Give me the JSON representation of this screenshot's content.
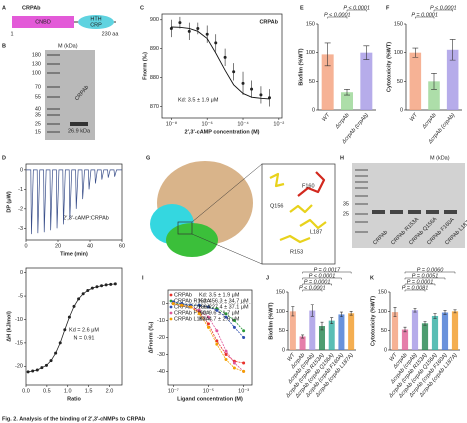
{
  "figure": {
    "panel_labels": [
      "A",
      "B",
      "C",
      "D",
      "E",
      "F",
      "G",
      "H",
      "I",
      "J",
      "K"
    ],
    "caption": "Fig. 2. Analysis of the binding of 2′,3′-cNMPs to CRPAb"
  },
  "domain_map": {
    "protein": "CRPAb",
    "domain1": "CNBD",
    "domain2_top": "HTH",
    "domain2_bottom": "CRP",
    "start": "1",
    "end": "230 aa"
  },
  "gel_b": {
    "unit": "M (kDa)",
    "markers": [
      "180",
      "130",
      "100",
      "70",
      "55",
      "40",
      "35",
      "25",
      "15"
    ],
    "lane": "CRPAb",
    "band": "26.9 kDa"
  },
  "structure_g": {
    "residues": [
      "F160",
      "Q156",
      "L187",
      "R153"
    ]
  },
  "gel_h": {
    "unit": "M (kDa)",
    "markers": [
      "35",
      "25"
    ],
    "lanes": [
      "CRPAb",
      "CRPAb R153A",
      "CRPAb Q156A",
      "CRPAb F160A",
      "CRPAb L187A"
    ]
  },
  "chart_data": [
    {
      "type": "scatter",
      "title": "CRPAb",
      "xlabel": "2′,3′-cAMP concentration (M)",
      "ylabel": "Fnorm (‰)",
      "log_x": true,
      "x": [
        1e-08,
        3e-08,
        1e-07,
        3e-07,
        1e-06,
        3e-06,
        1e-05,
        3e-05,
        0.0001,
        0.0003,
        0.001,
        0.003
      ],
      "series": [
        {
          "color": "#222222",
          "values": [
            897,
            899,
            896,
            897,
            895,
            892,
            887,
            882,
            878,
            876,
            874,
            873
          ],
          "errors": [
            3,
            2,
            3,
            2,
            3,
            3,
            3,
            3,
            4,
            3,
            3,
            3
          ]
        }
      ],
      "fit": {
        "x": [
          1e-08,
          3e-08,
          1e-07,
          3e-07,
          1e-06,
          3e-06,
          1e-05,
          3e-05,
          0.0001,
          0.0003,
          0.001,
          0.003
        ],
        "values": [
          897.5,
          897.4,
          897,
          896,
          893.5,
          888.5,
          882.5,
          877.5,
          874.5,
          873.2,
          872.8,
          872.6
        ]
      },
      "annotations": [
        "Kd: 3.5 ± 1.9 μM"
      ],
      "xlim": [
        3e-09,
        0.015
      ],
      "ylim": [
        866,
        902
      ],
      "xticks": [
        {
          "value": 1e-08,
          "label": "10⁻⁸"
        },
        {
          "value": 1e-06,
          "label": "10⁻⁶"
        },
        {
          "value": 0.0001,
          "label": "10⁻⁴"
        },
        {
          "value": 0.01,
          "label": "10⁻²"
        }
      ],
      "yticks": [
        870,
        880,
        890,
        900
      ]
    },
    {
      "type": "line",
      "xlabel": "Time (min)",
      "ylabel": "DP (μW)",
      "annotations": [
        "2′,3′-cAMP:CRPAb"
      ],
      "x": [
        0,
        3,
        3.4,
        4.6,
        7,
        7.4,
        8.6,
        11,
        11.4,
        12.6,
        15,
        15.4,
        16.6,
        19,
        19.4,
        20.6,
        23,
        23.4,
        24.6,
        27,
        27.4,
        28.6,
        31,
        31.4,
        32.6,
        35,
        35.4,
        36.6,
        39,
        39.4,
        40.6,
        43,
        43.4,
        44.6,
        47,
        47.4,
        48.6,
        51,
        51.4,
        52.6,
        55,
        55.4,
        56.6,
        60
      ],
      "series": [
        {
          "color": "#3a4f8a",
          "values": [
            0,
            0,
            -3.3,
            0,
            0,
            -3.25,
            0,
            0,
            -3.2,
            0,
            0,
            -3.1,
            0,
            0,
            -3.0,
            0,
            0,
            -2.8,
            0,
            0,
            -2.5,
            0,
            0,
            -2.0,
            0,
            0,
            -1.5,
            0,
            0,
            -1.0,
            0,
            0,
            -0.7,
            0,
            0,
            -0.5,
            0,
            0,
            -0.4,
            0,
            0,
            -0.35,
            0,
            0
          ]
        }
      ],
      "xlim": [
        0,
        60
      ],
      "ylim": [
        -3.6,
        0.3
      ],
      "xticks": [
        0,
        20,
        40,
        60
      ],
      "yticks": [
        0,
        -1,
        -2,
        -3
      ]
    },
    {
      "type": "scatter",
      "xlabel": "Ratio",
      "ylabel": "ΔH (kJ/mol)",
      "annotations": [
        "Kd = 2.6 μM",
        "N = 0.91"
      ],
      "connect": true,
      "x": [
        0.05,
        0.16,
        0.27,
        0.38,
        0.49,
        0.6,
        0.71,
        0.82,
        0.93,
        1.04,
        1.15,
        1.26,
        1.37,
        1.48,
        1.59,
        1.7,
        1.81,
        1.92,
        2.03,
        2.14
      ],
      "series": [
        {
          "color": "#222222",
          "values": [
            -21.2,
            -21.0,
            -20.8,
            -20.3,
            -19.8,
            -18.8,
            -17.2,
            -15.0,
            -12.2,
            -9.5,
            -7.2,
            -5.6,
            -4.5,
            -3.8,
            -3.3,
            -3.0,
            -2.8,
            -2.6,
            -2.5,
            -2.4
          ]
        }
      ],
      "xlim": [
        0,
        2.3
      ],
      "ylim": [
        -24,
        1
      ],
      "xticks": [
        {
          "value": 0,
          "label": "0.0"
        },
        0.5,
        {
          "value": 1,
          "label": "1.0"
        },
        1.5,
        {
          "value": 2,
          "label": "2.0"
        }
      ],
      "yticks": [
        -20,
        -15,
        -10,
        -5,
        0
      ]
    },
    {
      "type": "bar",
      "ylabel": "Biofilm (%WT)",
      "categories": [
        "WT",
        "ΔcrpAb",
        "ΔcrpAb (crpAb)"
      ],
      "values": [
        97,
        31,
        100
      ],
      "errors": [
        20,
        5,
        12
      ],
      "colors": [
        "#f4a582",
        "#9fd89a",
        "#a99ee6"
      ],
      "p_values": [
        "P < 0.0001",
        "P < 0.0001"
      ],
      "ylim": [
        0,
        150
      ],
      "yticks": [
        0,
        50,
        100,
        150
      ]
    },
    {
      "type": "bar",
      "ylabel": "Cytotoxicity (%WT)",
      "categories": [
        "WT",
        "ΔcrpAb",
        "ΔcrpAb (crpAb)"
      ],
      "values": [
        100,
        50,
        105
      ],
      "errors": [
        8,
        14,
        18
      ],
      "colors": [
        "#f4a582",
        "#9fd89a",
        "#a99ee6"
      ],
      "p_values": [
        "P < 0.0001",
        "P = 0.0001"
      ],
      "ylim": [
        0,
        150
      ],
      "yticks": [
        0,
        50,
        100,
        150
      ]
    },
    {
      "type": "scatter",
      "xlabel": "Ligand concentration (M)",
      "ylabel": "ΔFnorm (‰)",
      "log_x": true,
      "connect": true,
      "x": [
        1e-07,
        3e-07,
        1e-06,
        3e-06,
        1e-05,
        3e-05,
        0.0001,
        0.0003,
        0.001
      ],
      "series": [
        {
          "name": "CRPAb",
          "kd": "Kd: 3.5 ± 1.9 μM",
          "color": "#e8312a",
          "values": [
            0,
            -1,
            -2,
            -5,
            -12,
            -22,
            -30,
            -34,
            -35
          ]
        },
        {
          "name": "CRPAb R153A",
          "kd": "Kd: 456.3 ± 34.7 μM",
          "color": "#2a9a3a",
          "values": [
            0,
            0,
            -1,
            -1,
            -2,
            -3,
            -6,
            -10,
            -16
          ]
        },
        {
          "name": "CRPAb Q156A",
          "kd": "Kd: 227.4 ± 37.1 μM",
          "color": "#2f4fb0",
          "values": [
            1,
            0,
            -1,
            -1,
            -2,
            -4,
            -8,
            -14,
            -20
          ]
        },
        {
          "name": "CRPAb F160A",
          "kd": "Kd: 9.6 ± 1.7 μM",
          "color": "#e0559a",
          "values": [
            0,
            -1,
            -2,
            -4,
            -8,
            -16,
            -28,
            -35,
            -40
          ]
        },
        {
          "name": "CRPAb L187A",
          "kd": "Kd: 4.7 ± 2.9 μM",
          "color": "#f4a000",
          "values": [
            0,
            -1,
            -2,
            -6,
            -14,
            -24,
            -33,
            -38,
            -40
          ]
        }
      ],
      "xlim": [
        5e-08,
        0.003
      ],
      "ylim": [
        -48,
        8
      ],
      "xticks": [
        {
          "value": 1e-07,
          "label": "10⁻⁷"
        },
        {
          "value": 1e-05,
          "label": "10⁻⁵"
        },
        {
          "value": 0.001,
          "label": "10⁻³"
        }
      ],
      "yticks": [
        0,
        -10,
        -20,
        -30,
        -40
      ]
    },
    {
      "type": "bar",
      "ylabel": "Biofilm (%WT)",
      "categories": [
        "WT",
        "ΔcrpAb",
        "ΔcrpAb (crpAb)",
        "ΔcrpAb (crpAb R153A)",
        "ΔcrpAb (crpAb Q156A)",
        "ΔcrpAb (crpAb F160A)",
        "ΔcrpAb (crpAb L187A)"
      ],
      "values": [
        100,
        35,
        102,
        62,
        76,
        92,
        95
      ],
      "errors": [
        12,
        4,
        15,
        10,
        8,
        6,
        5
      ],
      "colors": [
        "#f4a582",
        "#e0679b",
        "#a99ee6",
        "#2e8b57",
        "#3cb3a8",
        "#4f7fd6",
        "#f2a033"
      ],
      "p_values": [
        "P = 0.0017",
        "P < 0.0001",
        "P = 0.0001",
        "P < 0.0001"
      ],
      "ylim": [
        0,
        150
      ],
      "yticks": [
        0,
        50,
        100,
        150
      ]
    },
    {
      "type": "bar",
      "ylabel": "Cytotoxicity (%WT)",
      "categories": [
        "WT",
        "ΔcrpAb",
        "ΔcrpAb (crpAb)",
        "ΔcrpAb (crpAb R153A)",
        "ΔcrpAb (crpAb Q156A)",
        "ΔcrpAb (crpAb F160A)",
        "ΔcrpAb (crpAb L187A)"
      ],
      "values": [
        98,
        53,
        103,
        69,
        88,
        97,
        100
      ],
      "errors": [
        12,
        6,
        5,
        5,
        6,
        5,
        4
      ],
      "colors": [
        "#f4a582",
        "#e0679b",
        "#a99ee6",
        "#2e8b57",
        "#3cb3a8",
        "#4f7fd6",
        "#f2a033"
      ],
      "p_values": [
        "P = 0.0060",
        "P = 0.0051",
        "P = 0.0001",
        "P = 0.0081"
      ],
      "ylim": [
        0,
        150
      ],
      "yticks": [
        0,
        50,
        100,
        150
      ]
    }
  ]
}
